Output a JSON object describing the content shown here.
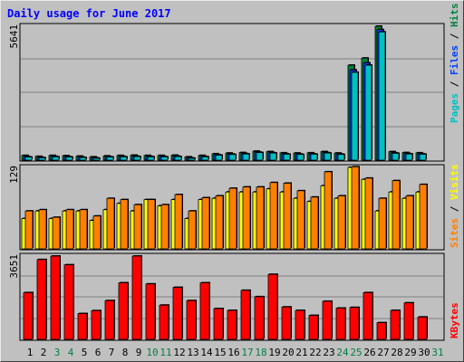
{
  "title": "Daily usage for June 2017",
  "side_labels": {
    "panel1": [
      {
        "text": "Pages",
        "color": "#00c0c0"
      },
      {
        "text": " / ",
        "color": "#000000"
      },
      {
        "text": "Files",
        "color": "#0040ff"
      },
      {
        "text": " / ",
        "color": "#000000"
      },
      {
        "text": "Hits",
        "color": "#008040"
      }
    ],
    "panel2": [
      {
        "text": "Sites",
        "color": "#ff8000"
      },
      {
        "text": " / ",
        "color": "#000000"
      },
      {
        "text": "Visits",
        "color": "#ffff00"
      }
    ],
    "panel3": [
      {
        "text": "KBytes",
        "color": "#ff0000"
      }
    ]
  },
  "colors": {
    "title": "#0000ff",
    "hits": "#008040",
    "files": "#0040ff",
    "pages": "#00c0c0",
    "visits": "#ffff00",
    "sites": "#ff8000",
    "kbytes": "#ff0000",
    "weekend": "#008040",
    "weekday": "#000000",
    "plot_bg": "#c0c0c0",
    "grid": "#808080"
  },
  "chart_data": {
    "type": "bar",
    "title": "Daily usage for June 2017",
    "categories": [
      "1",
      "2",
      "3",
      "4",
      "5",
      "6",
      "7",
      "8",
      "9",
      "10",
      "11",
      "12",
      "13",
      "14",
      "15",
      "16",
      "17",
      "18",
      "19",
      "20",
      "21",
      "22",
      "23",
      "24",
      "25",
      "26",
      "27",
      "28",
      "29",
      "30",
      "31"
    ],
    "weekend_days": [
      3,
      4,
      10,
      11,
      17,
      18,
      24,
      25,
      31
    ],
    "panels": [
      {
        "max_label": "5641",
        "ymax": 5641,
        "series": [
          {
            "name": "Hits",
            "values": [
              200,
              160,
              200,
              190,
              170,
              140,
              180,
              200,
              210,
              200,
              200,
              210,
              140,
              200,
              270,
              300,
              320,
              380,
              360,
              310,
              300,
              310,
              360,
              300,
              4000,
              4300,
              5641,
              360,
              320,
              310,
              0
            ]
          },
          {
            "name": "Files",
            "values": [
              150,
              120,
              160,
              150,
              130,
              100,
              150,
              160,
              170,
              160,
              160,
              170,
              100,
              160,
              230,
              260,
              280,
              340,
              320,
              270,
              260,
              270,
              320,
              260,
              3800,
              4100,
              5500,
              310,
              280,
              270,
              0
            ]
          },
          {
            "name": "Pages",
            "values": [
              130,
              100,
              140,
              130,
              110,
              80,
              130,
              140,
              150,
              140,
              140,
              150,
              80,
              140,
              210,
              240,
              260,
              320,
              300,
              250,
              240,
              250,
              300,
              240,
              3700,
              4000,
              5400,
              290,
              260,
              250,
              0
            ]
          }
        ]
      },
      {
        "max_label": "129",
        "ymax": 129,
        "series": [
          {
            "name": "Visits",
            "values": [
              48,
              60,
              48,
              60,
              60,
              45,
              62,
              72,
              60,
              78,
              68,
              78,
              48,
              78,
              80,
              90,
              90,
              90,
              95,
              90,
              80,
              75,
              100,
              80,
              129,
              110,
              60,
              90,
              80,
              90,
              0
            ]
          },
          {
            "name": "Sites",
            "values": [
              60,
              62,
              50,
              62,
              62,
              52,
              80,
              78,
              70,
              78,
              70,
              86,
              60,
              81,
              84,
              96,
              98,
              98,
              105,
              104,
              92,
              82,
              122,
              84,
              130,
              112,
              80,
              108,
              84,
              102,
              0
            ]
          }
        ]
      },
      {
        "max_label": "3651",
        "ymax": 3651,
        "series": [
          {
            "name": "KBytes",
            "values": [
              2050,
              3500,
              3651,
              3270,
              1130,
              1260,
              1700,
              2480,
              3651,
              2430,
              1500,
              2280,
              1700,
              2480,
              1350,
              1270,
              2150,
              1870,
              2850,
              1420,
              1270,
              1050,
              1670,
              1370,
              1400,
              2050,
              730,
              1270,
              1600,
              980,
              0
            ]
          }
        ]
      }
    ]
  }
}
